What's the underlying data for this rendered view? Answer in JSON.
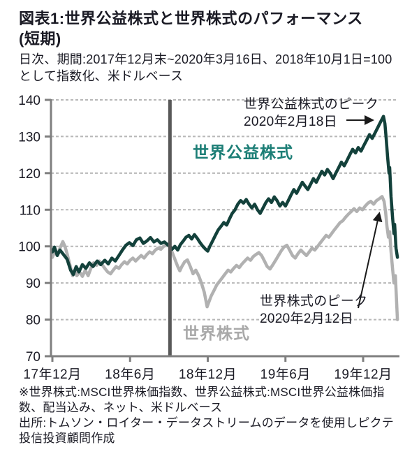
{
  "header": {
    "title_line1": "図表1:世界公益株式と世界株式のパフォーマンス",
    "title_line2": "(短期)",
    "subtitle": "日次、期間:2017年12月末~2020年3月16日、2018年10月1日=100として指数化、米ドルベース"
  },
  "footer": {
    "note1": "※世界株式:MSCI世界株価指数、世界公益株式:MSCI世界公益株価指数、配当込み、ネット、米ドルベース",
    "note2": "出所:トムソン・ロイター・データストリームのデータを使用しピクテ投信投資顧問作成"
  },
  "colors": {
    "utilities_line": "#13413b",
    "utilities_label": "#1c7e76",
    "world_line": "#b1b1b1",
    "world_label": "#a9a9a9",
    "grid": "#b7b7b7",
    "axis": "#7f7f7f",
    "reference_line": "#595959",
    "text_dark": "#1a1a24",
    "arrow": "#1a1a1a"
  },
  "chart_data": {
    "type": "line",
    "title": "図表1:世界公益株式と世界株式のパフォーマンス(短期)",
    "subtitle": "日次、期間:2017年12月末~2020年3月16日、2018年10月1日=100として指数化、米ドルベース",
    "grid": "dashed-horizontal",
    "legend_position": "in-plot-labels",
    "y_axis": {
      "min": 70,
      "max": 140,
      "ticks": [
        140,
        130,
        120,
        110,
        100,
        90,
        80,
        70
      ]
    },
    "x_axis": {
      "tick_labels": [
        "17年12月",
        "18年6月",
        "18年12月",
        "19年6月",
        "19年12月"
      ],
      "tick_months": [
        0,
        6,
        12,
        18,
        24
      ],
      "months_span": [
        0,
        26.65
      ]
    },
    "reference_line": {
      "month": 9.08
    },
    "annotations": [
      {
        "text_line1": "世界公益株式のピーク",
        "text_line2": "2020年2月18日"
      },
      {
        "text_line1": "世界株式のピーク",
        "text_line2": "2020年2月12日"
      }
    ],
    "series": [
      {
        "name": "世界株式",
        "color": "#b1b1b1",
        "points": [
          [
            0,
            97
          ],
          [
            0.16,
            98.5
          ],
          [
            0.38,
            97.5
          ],
          [
            0.59,
            99.5
          ],
          [
            0.81,
            101.3
          ],
          [
            0.97,
            100
          ],
          [
            1.14,
            98
          ],
          [
            1.35,
            95
          ],
          [
            1.57,
            92
          ],
          [
            1.73,
            93.5
          ],
          [
            1.89,
            92
          ],
          [
            2.11,
            93
          ],
          [
            2.32,
            91.8
          ],
          [
            2.54,
            93.5
          ],
          [
            2.76,
            92
          ],
          [
            2.97,
            94
          ],
          [
            3.19,
            95.5
          ],
          [
            3.41,
            94.8
          ],
          [
            3.62,
            96
          ],
          [
            3.84,
            95
          ],
          [
            4.05,
            94
          ],
          [
            4.27,
            93
          ],
          [
            4.49,
            92.5
          ],
          [
            4.7,
            93.5
          ],
          [
            4.92,
            94.5
          ],
          [
            5.14,
            94
          ],
          [
            5.35,
            95
          ],
          [
            5.57,
            95.8
          ],
          [
            5.78,
            95.2
          ],
          [
            6,
            96.2
          ],
          [
            6.22,
            96.8
          ],
          [
            6.43,
            96
          ],
          [
            6.65,
            96.8
          ],
          [
            6.86,
            97.5
          ],
          [
            7.08,
            96.8
          ],
          [
            7.3,
            97.8
          ],
          [
            7.51,
            98.5
          ],
          [
            7.73,
            98
          ],
          [
            7.95,
            99
          ],
          [
            8.16,
            99.5
          ],
          [
            8.38,
            99.2
          ],
          [
            8.59,
            100
          ],
          [
            8.81,
            100.3
          ],
          [
            9.08,
            100
          ],
          [
            9.24,
            98.5
          ],
          [
            9.46,
            96.5
          ],
          [
            9.68,
            94.5
          ],
          [
            9.84,
            93.3
          ],
          [
            10,
            94.5
          ],
          [
            10.22,
            95.8
          ],
          [
            10.43,
            96.3
          ],
          [
            10.65,
            94.5
          ],
          [
            10.86,
            92.5
          ],
          [
            11.08,
            93.5
          ],
          [
            11.3,
            92
          ],
          [
            11.51,
            90
          ],
          [
            11.73,
            87.5
          ],
          [
            11.95,
            83.5
          ],
          [
            12.11,
            85
          ],
          [
            12.27,
            86.5
          ],
          [
            12.49,
            88
          ],
          [
            12.7,
            89.5
          ],
          [
            12.92,
            90.5
          ],
          [
            13.14,
            91.5
          ],
          [
            13.35,
            92.5
          ],
          [
            13.57,
            93.5
          ],
          [
            13.78,
            93
          ],
          [
            14,
            94
          ],
          [
            14.22,
            94.8
          ],
          [
            14.43,
            94.2
          ],
          [
            14.65,
            95.2
          ],
          [
            14.86,
            96
          ],
          [
            15.08,
            96.8
          ],
          [
            15.3,
            96.2
          ],
          [
            15.51,
            97.2
          ],
          [
            15.73,
            97.8
          ],
          [
            15.95,
            98.3
          ],
          [
            16.16,
            97.5
          ],
          [
            16.38,
            96
          ],
          [
            16.59,
            94.5
          ],
          [
            16.81,
            93.8
          ],
          [
            17.03,
            95
          ],
          [
            17.24,
            96.2
          ],
          [
            17.46,
            97.5
          ],
          [
            17.68,
            98.8
          ],
          [
            17.89,
            99.8
          ],
          [
            18.11,
            100.3
          ],
          [
            18.32,
            99
          ],
          [
            18.54,
            97.5
          ],
          [
            18.76,
            96.8
          ],
          [
            18.97,
            98
          ],
          [
            19.19,
            99
          ],
          [
            19.41,
            98.2
          ],
          [
            19.62,
            97.5
          ],
          [
            19.84,
            98.5
          ],
          [
            20.05,
            99.5
          ],
          [
            20.27,
            99
          ],
          [
            20.49,
            100
          ],
          [
            20.7,
            101
          ],
          [
            20.92,
            102
          ],
          [
            21.14,
            103
          ],
          [
            21.35,
            102.5
          ],
          [
            21.57,
            103.5
          ],
          [
            21.78,
            104.5
          ],
          [
            22,
            105.5
          ],
          [
            22.22,
            106.5
          ],
          [
            22.43,
            107
          ],
          [
            22.65,
            108
          ],
          [
            22.86,
            108.8
          ],
          [
            23.08,
            109.5
          ],
          [
            23.3,
            110.3
          ],
          [
            23.51,
            109.5
          ],
          [
            23.73,
            110.5
          ],
          [
            23.95,
            110
          ],
          [
            24.16,
            111
          ],
          [
            24.38,
            111.8
          ],
          [
            24.59,
            112.3
          ],
          [
            24.81,
            111.5
          ],
          [
            25.03,
            112.5
          ],
          [
            25.24,
            113
          ],
          [
            25.46,
            113.6
          ],
          [
            25.62,
            112.3
          ],
          [
            25.73,
            109.5
          ],
          [
            25.84,
            105.5
          ],
          [
            25.95,
            102.5
          ],
          [
            26.05,
            104
          ],
          [
            26.16,
            98.5
          ],
          [
            26.27,
            94
          ],
          [
            26.38,
            90
          ],
          [
            26.49,
            92
          ],
          [
            26.59,
            84.5
          ],
          [
            26.65,
            80
          ]
        ]
      },
      {
        "name": "世界公益株式",
        "color": "#13413b",
        "points": [
          [
            0,
            98.5
          ],
          [
            0.16,
            99.8
          ],
          [
            0.38,
            97.5
          ],
          [
            0.59,
            99
          ],
          [
            0.81,
            98
          ],
          [
            1.14,
            96.5
          ],
          [
            1.41,
            93.5
          ],
          [
            1.62,
            92.3
          ],
          [
            1.84,
            94.5
          ],
          [
            2.05,
            93
          ],
          [
            2.32,
            95
          ],
          [
            2.59,
            94
          ],
          [
            2.86,
            95.5
          ],
          [
            3.14,
            94.5
          ],
          [
            3.46,
            96
          ],
          [
            3.73,
            95
          ],
          [
            4.05,
            96.2
          ],
          [
            4.32,
            95.2
          ],
          [
            4.59,
            96.8
          ],
          [
            4.86,
            96
          ],
          [
            5.14,
            97.5
          ],
          [
            5.41,
            99
          ],
          [
            5.68,
            100.3
          ],
          [
            5.95,
            101
          ],
          [
            6.22,
            100.2
          ],
          [
            6.49,
            101.8
          ],
          [
            6.76,
            102.3
          ],
          [
            7.03,
            100.8
          ],
          [
            7.3,
            101.5
          ],
          [
            7.57,
            102.4
          ],
          [
            7.84,
            101.2
          ],
          [
            8.11,
            101.8
          ],
          [
            8.38,
            100.8
          ],
          [
            8.65,
            101.2
          ],
          [
            8.92,
            100.4
          ],
          [
            9.08,
            100
          ],
          [
            9.24,
            99.2
          ],
          [
            9.46,
            100
          ],
          [
            9.68,
            99
          ],
          [
            9.89,
            100.5
          ],
          [
            10.11,
            101.5
          ],
          [
            10.32,
            102.5
          ],
          [
            10.54,
            103
          ],
          [
            10.76,
            102
          ],
          [
            10.97,
            103.2
          ],
          [
            11.19,
            102.2
          ],
          [
            11.41,
            101
          ],
          [
            11.62,
            100
          ],
          [
            11.84,
            99.2
          ],
          [
            12,
            98.7
          ],
          [
            12.16,
            100
          ],
          [
            12.38,
            101.5
          ],
          [
            12.59,
            103
          ],
          [
            12.81,
            104.5
          ],
          [
            13.03,
            105.5
          ],
          [
            13.24,
            106.5
          ],
          [
            13.46,
            105.8
          ],
          [
            13.68,
            107.5
          ],
          [
            13.89,
            109
          ],
          [
            14.11,
            110
          ],
          [
            14.32,
            111.5
          ],
          [
            14.54,
            112.5
          ],
          [
            14.76,
            111.8
          ],
          [
            14.97,
            112.8
          ],
          [
            15.19,
            111.5
          ],
          [
            15.41,
            110.5
          ],
          [
            15.62,
            111.5
          ],
          [
            15.84,
            110
          ],
          [
            16.05,
            109
          ],
          [
            16.27,
            110.5
          ],
          [
            16.49,
            112
          ],
          [
            16.7,
            113
          ],
          [
            16.92,
            112
          ],
          [
            17.14,
            113.5
          ],
          [
            17.35,
            112.5
          ],
          [
            17.57,
            111
          ],
          [
            17.78,
            112
          ],
          [
            18,
            111
          ],
          [
            18.22,
            112.5
          ],
          [
            18.43,
            114
          ],
          [
            18.65,
            115.5
          ],
          [
            18.86,
            114.5
          ],
          [
            19.08,
            116
          ],
          [
            19.3,
            117.5
          ],
          [
            19.51,
            116.5
          ],
          [
            19.73,
            115.5
          ],
          [
            19.95,
            117
          ],
          [
            20.16,
            118.5
          ],
          [
            20.38,
            117.5
          ],
          [
            20.59,
            119
          ],
          [
            20.81,
            120.5
          ],
          [
            21.03,
            119.5
          ],
          [
            21.24,
            121
          ],
          [
            21.46,
            120
          ],
          [
            21.68,
            118.5
          ],
          [
            21.89,
            120
          ],
          [
            22.11,
            121.5
          ],
          [
            22.32,
            123
          ],
          [
            22.54,
            122
          ],
          [
            22.76,
            123.5
          ],
          [
            22.97,
            125
          ],
          [
            23.19,
            126.5
          ],
          [
            23.41,
            125.5
          ],
          [
            23.62,
            127
          ],
          [
            23.84,
            126
          ],
          [
            24.05,
            127.5
          ],
          [
            24.27,
            129
          ],
          [
            24.49,
            130.5
          ],
          [
            24.7,
            129.5
          ],
          [
            24.92,
            131
          ],
          [
            25.14,
            132.5
          ],
          [
            25.35,
            134
          ],
          [
            25.57,
            135.5
          ],
          [
            25.68,
            133.5
          ],
          [
            25.78,
            129.5
          ],
          [
            25.89,
            124.5
          ],
          [
            26,
            120
          ],
          [
            26.05,
            121.5
          ],
          [
            26.16,
            113.5
          ],
          [
            26.27,
            108
          ],
          [
            26.38,
            103.5
          ],
          [
            26.43,
            106
          ],
          [
            26.54,
            99.5
          ],
          [
            26.65,
            97
          ]
        ]
      }
    ]
  }
}
